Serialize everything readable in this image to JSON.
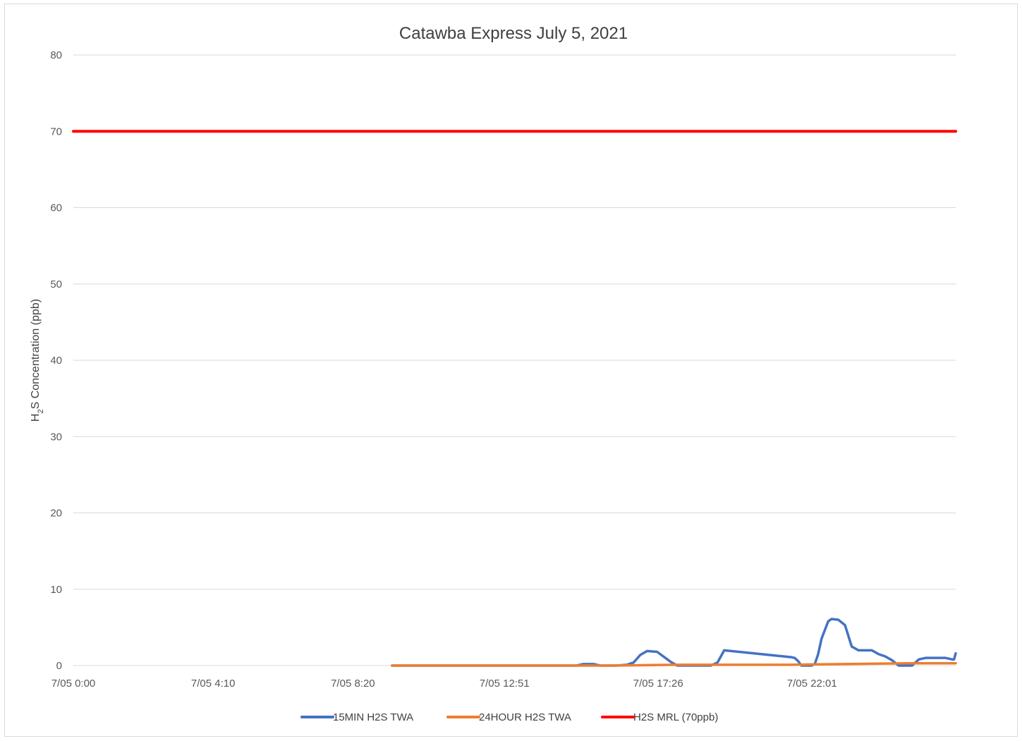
{
  "chart_data": {
    "type": "line",
    "title": "Catawba Express July 5, 2021",
    "ylabel_parts": [
      "H",
      "2",
      "S Concentration (ppb)"
    ],
    "xlabel": "",
    "x_unit": "hours since 7/05 0:00",
    "xlim": [
      0,
      26.3
    ],
    "ylim": [
      0,
      80
    ],
    "y_ticks": [
      0,
      10,
      20,
      30,
      40,
      50,
      60,
      70,
      80
    ],
    "x_ticks": [
      {
        "value": 0,
        "label": "7/05 0:00"
      },
      {
        "value": 4.1667,
        "label": "7/05 4:10"
      },
      {
        "value": 8.3333,
        "label": "7/05 8:20"
      },
      {
        "value": 12.85,
        "label": "7/05 12:51"
      },
      {
        "value": 17.4333,
        "label": "7/05 17:26"
      },
      {
        "value": 22.0167,
        "label": "7/05 22:01"
      }
    ],
    "grid": true,
    "legend_position": "bottom",
    "series": [
      {
        "name": "15MIN H2S TWA",
        "color": "#4472C4",
        "x": [
          9.5,
          15.0,
          15.2,
          15.5,
          15.7,
          16.0,
          16.2,
          16.5,
          16.7,
          16.9,
          17.1,
          17.4,
          17.8,
          18.0,
          18.2,
          18.4,
          18.6,
          18.8,
          19.0,
          19.2,
          19.4,
          21.4,
          21.5,
          21.6,
          21.7,
          21.8,
          21.9,
          22.0,
          22.1,
          22.2,
          22.3,
          22.5,
          22.6,
          22.8,
          23.0,
          23.2,
          23.4,
          23.6,
          23.8,
          24.0,
          24.2,
          24.4,
          24.6,
          24.8,
          25.0,
          25.2,
          25.4,
          25.6,
          25.8,
          26.0,
          26.2,
          26.25,
          26.3
        ],
        "y": [
          0,
          0,
          0.2,
          0.2,
          0,
          0,
          0,
          0.1,
          0.4,
          1.4,
          1.9,
          1.8,
          0.5,
          0,
          0,
          0,
          0,
          0,
          0,
          0.4,
          2.0,
          1.1,
          1.0,
          0.6,
          0,
          0,
          0,
          0,
          0.2,
          1.5,
          3.5,
          5.8,
          6.1,
          6.0,
          5.3,
          2.5,
          2.0,
          2.0,
          2.0,
          1.5,
          1.2,
          0.7,
          0,
          0,
          0,
          0.8,
          1.0,
          1.0,
          1.0,
          1.0,
          0.8,
          0.8,
          1.6
        ],
        "_note_unused": ""
      },
      {
        "name": "24HOUR H2S TWA",
        "color": "#ED7D31",
        "x": [
          9.5,
          16.0,
          18.0,
          21.4,
          22.0,
          23.0,
          24.0,
          25.0,
          26.3
        ],
        "y": [
          0,
          0,
          0.1,
          0.1,
          0.15,
          0.2,
          0.25,
          0.3,
          0.3
        ]
      },
      {
        "name": "H2S MRL (70ppb)",
        "color": "#FF0000",
        "x": [
          0,
          26.3
        ],
        "y": [
          70,
          70
        ]
      }
    ]
  }
}
